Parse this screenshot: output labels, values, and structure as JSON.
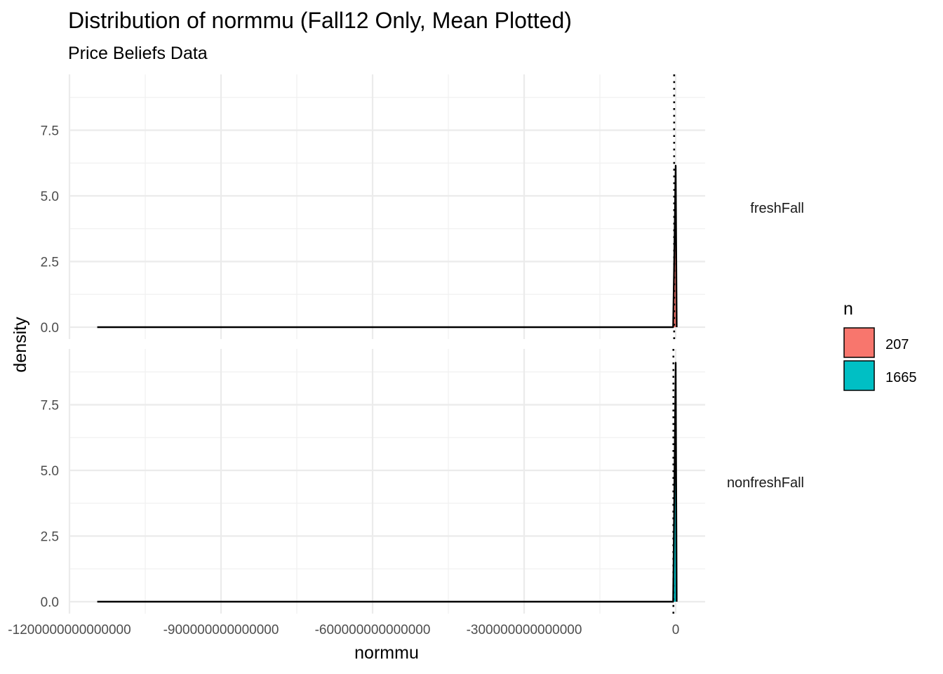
{
  "chart_data": {
    "type": "density",
    "title": "Distribution of normmu (Fall12 Only, Mean Plotted)",
    "subtitle": "Price Beliefs Data",
    "xlabel": "normmu",
    "ylabel": "density",
    "xlim": [
      -1200000000000000,
      0
    ],
    "ylim": [
      0,
      9.2
    ],
    "x_ticks": [
      -1200000000000000,
      -900000000000000,
      -600000000000000,
      -300000000000000,
      0
    ],
    "x_tick_labels": [
      "-1200000000000000",
      "-900000000000000",
      "-600000000000000",
      "-300000000000000",
      "0"
    ],
    "y_ticks": [
      0,
      2.5,
      5,
      7.5
    ],
    "y_tick_labels": [
      "0.0",
      "2.5",
      "5.0",
      "7.5"
    ],
    "grid": true,
    "legend": {
      "title": "n",
      "position": "right",
      "entries": [
        {
          "label": "207",
          "color": "#F8766D"
        },
        {
          "label": "1665",
          "color": "#00BFC4"
        }
      ]
    },
    "facets": [
      {
        "strip_label": "freshFall",
        "fill": "#F8766D",
        "mean_line_x": -3000000000000,
        "density_points": [
          [
            -1145000000000000,
            0
          ],
          [
            -928000000000000,
            0.0
          ],
          [
            -5000000000000,
            0
          ],
          [
            0,
            6.15
          ],
          [
            2000000000000,
            0
          ]
        ]
      },
      {
        "strip_label": "nonfreshFall",
        "fill": "#00BFC4",
        "mean_line_x": -4500000000000,
        "density_points": [
          [
            -1145000000000000,
            0
          ],
          [
            -5000000000000,
            0
          ],
          [
            0,
            9.1
          ],
          [
            2000000000000,
            0
          ]
        ]
      }
    ]
  }
}
